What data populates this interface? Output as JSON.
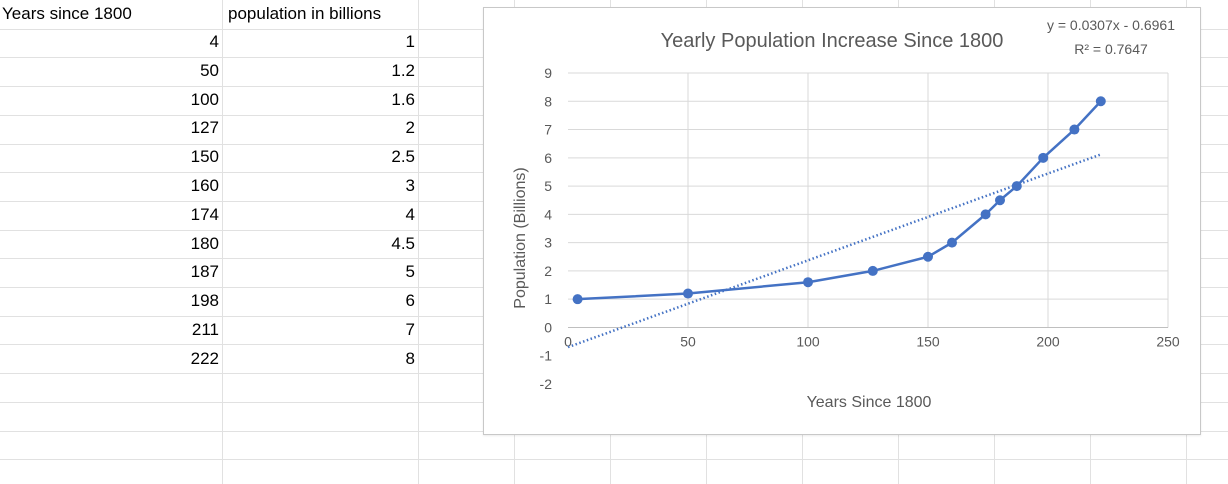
{
  "table": {
    "header_x": "Years since 1800",
    "header_y": "population in billions",
    "rows": [
      {
        "x": "4",
        "y": "1"
      },
      {
        "x": "50",
        "y": "1.2"
      },
      {
        "x": "100",
        "y": "1.6"
      },
      {
        "x": "127",
        "y": "2"
      },
      {
        "x": "150",
        "y": "2.5"
      },
      {
        "x": "160",
        "y": "3"
      },
      {
        "x": "174",
        "y": "4"
      },
      {
        "x": "180",
        "y": "4.5"
      },
      {
        "x": "187",
        "y": "5"
      },
      {
        "x": "198",
        "y": "6"
      },
      {
        "x": "211",
        "y": "7"
      },
      {
        "x": "222",
        "y": "8"
      }
    ]
  },
  "chart_data": {
    "type": "line",
    "title": "Yearly Population Increase Since 1800",
    "xlabel": "Years Since 1800",
    "ylabel": "Population (Billions)",
    "xlim": [
      0,
      250
    ],
    "ylim": [
      -2,
      9
    ],
    "x_ticks": [
      0,
      50,
      100,
      150,
      200,
      250
    ],
    "y_ticks": [
      -2,
      -1,
      0,
      1,
      2,
      3,
      4,
      5,
      6,
      7,
      8,
      9
    ],
    "grid": true,
    "series": [
      {
        "x": [
          4,
          50,
          100,
          127,
          150,
          160,
          174,
          180,
          187,
          198,
          211,
          222
        ],
        "y": [
          1,
          1.2,
          1.6,
          2,
          2.5,
          3,
          4,
          4.5,
          5,
          6,
          7,
          8
        ],
        "color": "#4472C4"
      }
    ],
    "trendline": {
      "type": "linear",
      "slope": 0.0307,
      "intercept": -0.6961,
      "x_range": [
        0,
        222
      ],
      "style": "dotted",
      "color": "#4472C4",
      "equation_label": "y = 0.0307x - 0.6961",
      "r2_label": "R² = 0.7647"
    }
  }
}
